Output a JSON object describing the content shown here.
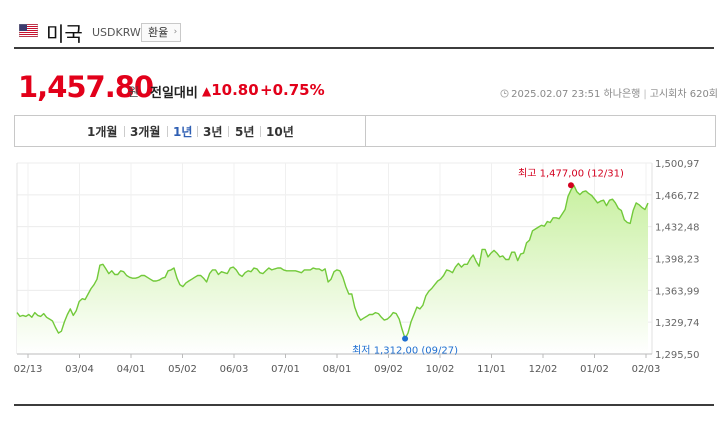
{
  "header": {
    "flag_icon": "us-flag-icon",
    "country": "미국",
    "code": "USDKRW",
    "exchange_button": "환율"
  },
  "quote": {
    "price": "1,457.80",
    "unit": "원",
    "vs_label": "전일대비",
    "change": "10.80",
    "change_pct": "+0.75%",
    "direction": "up",
    "datetime": "2025.02.07 23:51",
    "bank": "하나은행",
    "notice": "고시회차 620회"
  },
  "period_tabs": [
    {
      "label": "1개월",
      "active": false
    },
    {
      "label": "3개월",
      "active": false
    },
    {
      "label": "1년",
      "active": true
    },
    {
      "label": "3년",
      "active": false
    },
    {
      "label": "5년",
      "active": false
    },
    {
      "label": "10년",
      "active": false
    }
  ],
  "colors": {
    "up": "#e2001a",
    "line": "#72c93a",
    "fill_top": "#c8f0a0",
    "low_marker": "#1f6fd1",
    "high_marker": "#d3001f",
    "active_tab": "#2f5fb3"
  },
  "chart_data": {
    "type": "area",
    "x_tick_labels": [
      "02/13",
      "03/04",
      "04/01",
      "05/02",
      "06/03",
      "07/01",
      "08/01",
      "09/02",
      "10/02",
      "11/01",
      "12/02",
      "01/02",
      "02/03"
    ],
    "y_tick_labels": [
      "1,500,97",
      "1,466,72",
      "1,432,48",
      "1,398,23",
      "1,363,99",
      "1,329,74",
      "1,295,50"
    ],
    "y_ticks": [
      1500.97,
      1466.72,
      1432.48,
      1398.23,
      1363.99,
      1329.74,
      1295.5
    ],
    "ylim": [
      1295.5,
      1500.97
    ],
    "grid": true,
    "high_annotation": "최고 1,477,00 (12/31)",
    "low_annotation": "최저 1,312,00 (09/27)",
    "high": {
      "index": 187,
      "value": 1477
    },
    "low": {
      "index": 131,
      "value": 1312
    },
    "values": [
      1340,
      1336,
      1337,
      1336,
      1338,
      1335,
      1340,
      1337,
      1336,
      1339,
      1335,
      1333,
      1331,
      1324,
      1318,
      1320,
      1330,
      1338,
      1344,
      1337,
      1342,
      1352,
      1355,
      1354,
      1360,
      1366,
      1370,
      1376,
      1391,
      1392,
      1387,
      1382,
      1385,
      1381,
      1381,
      1385,
      1384,
      1380,
      1378,
      1377,
      1377,
      1378,
      1380,
      1380,
      1378,
      1376,
      1374,
      1374,
      1375,
      1377,
      1378,
      1385,
      1386,
      1388,
      1377,
      1370,
      1368,
      1372,
      1374,
      1376,
      1378,
      1380,
      1380,
      1377,
      1373,
      1382,
      1386,
      1386,
      1381,
      1384,
      1383,
      1382,
      1388,
      1389,
      1386,
      1381,
      1379,
      1383,
      1385,
      1384,
      1388,
      1387,
      1383,
      1382,
      1385,
      1388,
      1386,
      1387,
      1388,
      1388,
      1386,
      1385,
      1385,
      1385,
      1385,
      1384,
      1383,
      1386,
      1386,
      1386,
      1388,
      1387,
      1387,
      1385,
      1387,
      1373,
      1376,
      1384,
      1386,
      1385,
      1378,
      1368,
      1360,
      1360,
      1346,
      1337,
      1332,
      1334,
      1336,
      1338,
      1338,
      1340,
      1339,
      1335,
      1332,
      1333,
      1336,
      1340,
      1339,
      1333,
      1322,
      1312,
      1318,
      1330,
      1338,
      1346,
      1344,
      1348,
      1358,
      1363,
      1366,
      1370,
      1374,
      1376,
      1380,
      1386,
      1385,
      1383,
      1389,
      1393,
      1389,
      1392,
      1392,
      1398,
      1402,
      1395,
      1390,
      1408,
      1408,
      1400,
      1404,
      1407,
      1404,
      1400,
      1401,
      1397,
      1397,
      1405,
      1405,
      1396,
      1403,
      1404,
      1415,
      1418,
      1428,
      1430,
      1432,
      1434,
      1433,
      1438,
      1437,
      1442,
      1442,
      1441,
      1446,
      1451,
      1465,
      1472,
      1477,
      1470,
      1467,
      1470,
      1471,
      1468,
      1466,
      1462,
      1458,
      1460,
      1461,
      1455,
      1461,
      1462,
      1458,
      1452,
      1450,
      1440,
      1437,
      1436,
      1450,
      1458,
      1456,
      1453,
      1451,
      1457.8
    ]
  }
}
